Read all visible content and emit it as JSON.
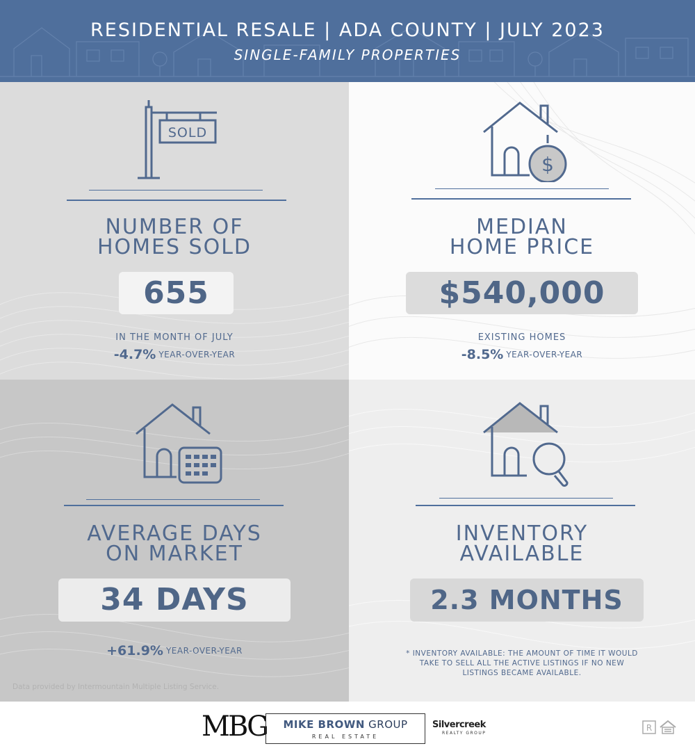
{
  "header": {
    "title": "RESIDENTIAL RESALE | ADA COUNTY | JULY 2023",
    "subtitle": "SINGLE-FAMILY PROPERTIES"
  },
  "colors": {
    "primary": "#4f6f9c",
    "text": "#51698e",
    "quad_top_left": "#dcdcdc",
    "quad_top_right": "#fbfbfb",
    "quad_bottom_left": "#c7c7c7",
    "quad_bottom_right": "#eeeeee"
  },
  "stats": {
    "homes_sold": {
      "icon": "sold-sign-icon",
      "heading_line1": "NUMBER OF",
      "heading_line2": "HOMES SOLD",
      "value": "655",
      "note": "IN THE MONTH OF JULY",
      "yoy_pct": "-4.7%",
      "yoy_label": "YEAR-OVER-YEAR"
    },
    "median_price": {
      "icon": "house-dollar-icon",
      "heading_line1": "MEDIAN",
      "heading_line2": "HOME PRICE",
      "value": "$540,000",
      "note": "EXISTING HOMES",
      "yoy_pct": "-8.5%",
      "yoy_label": "YEAR-OVER-YEAR"
    },
    "days_on_market": {
      "icon": "house-calendar-icon",
      "heading_line1": "AVERAGE DAYS",
      "heading_line2": "ON MARKET",
      "value": "34 DAYS",
      "yoy_pct": "+61.9%",
      "yoy_label": "YEAR-OVER-YEAR",
      "credit": "Data provided by Intermountain Multiple Listing Service."
    },
    "inventory": {
      "icon": "house-magnifier-icon",
      "heading_line1": "INVENTORY",
      "heading_line2": "AVAILABLE",
      "value": "2.3 MONTHS",
      "footnote": "* INVENTORY AVAILABLE: THE AMOUNT OF TIME IT WOULD TAKE TO SELL ALL THE ACTIVE LISTINGS IF NO NEW LISTINGS BECAME AVAILABLE."
    }
  },
  "footer": {
    "logo_mark": "MBG",
    "brand_bold": "MIKE BROWN",
    "brand_rest": "GROUP",
    "brand_sub": "REAL ESTATE",
    "partner": "Silvercreek",
    "partner_sub": "REALTY GROUP",
    "badge_icons": [
      "realtor-icon",
      "equal-housing-icon"
    ]
  },
  "sold_sign_text": "SOLD"
}
